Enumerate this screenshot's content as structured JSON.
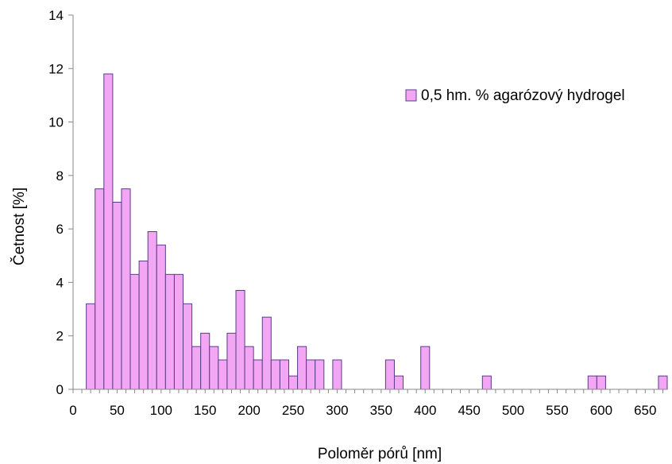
{
  "chart_data": {
    "type": "bar",
    "xlabel": "Poloměr pórů [nm]",
    "ylabel": "Četnost [%]",
    "xlim": [
      0,
      675
    ],
    "ylim": [
      0,
      14
    ],
    "bin_width": 10,
    "x_ticks": [
      0,
      50,
      100,
      150,
      200,
      250,
      300,
      350,
      400,
      450,
      500,
      550,
      600,
      650
    ],
    "x_tick_labels": [
      "0",
      "50",
      "100",
      "150",
      "200",
      "250",
      "300",
      "350",
      "400",
      "450",
      "500",
      "550",
      "600",
      "650"
    ],
    "y_ticks": [
      0,
      2,
      4,
      6,
      8,
      10,
      12,
      14
    ],
    "y_tick_labels": [
      "0",
      "2",
      "4",
      "6",
      "8",
      "10",
      "12",
      "14"
    ],
    "legend": {
      "position": "top-right",
      "entries": [
        "0,5 hm. % agarózový hydrogel"
      ]
    },
    "colors": {
      "bar_fill": "#f2a6f4",
      "bar_stroke": "#5a3d8a",
      "axis": "#888888"
    },
    "grid": false,
    "series": [
      {
        "name": "0,5 hm. % agarózový hydrogel",
        "bins": [
          {
            "x": 20,
            "value": 3.2
          },
          {
            "x": 30,
            "value": 7.5
          },
          {
            "x": 40,
            "value": 11.8
          },
          {
            "x": 50,
            "value": 7.0
          },
          {
            "x": 60,
            "value": 7.5
          },
          {
            "x": 70,
            "value": 4.3
          },
          {
            "x": 80,
            "value": 4.8
          },
          {
            "x": 90,
            "value": 5.9
          },
          {
            "x": 100,
            "value": 5.4
          },
          {
            "x": 110,
            "value": 4.3
          },
          {
            "x": 120,
            "value": 4.3
          },
          {
            "x": 130,
            "value": 3.2
          },
          {
            "x": 140,
            "value": 1.6
          },
          {
            "x": 150,
            "value": 2.1
          },
          {
            "x": 160,
            "value": 1.6
          },
          {
            "x": 170,
            "value": 1.1
          },
          {
            "x": 180,
            "value": 2.1
          },
          {
            "x": 190,
            "value": 3.7
          },
          {
            "x": 200,
            "value": 1.6
          },
          {
            "x": 210,
            "value": 1.1
          },
          {
            "x": 220,
            "value": 2.7
          },
          {
            "x": 230,
            "value": 1.1
          },
          {
            "x": 240,
            "value": 1.1
          },
          {
            "x": 250,
            "value": 0.5
          },
          {
            "x": 260,
            "value": 1.6
          },
          {
            "x": 270,
            "value": 1.1
          },
          {
            "x": 280,
            "value": 1.1
          },
          {
            "x": 300,
            "value": 1.1
          },
          {
            "x": 360,
            "value": 1.1
          },
          {
            "x": 370,
            "value": 0.5
          },
          {
            "x": 400,
            "value": 1.6
          },
          {
            "x": 470,
            "value": 0.5
          },
          {
            "x": 590,
            "value": 0.5
          },
          {
            "x": 600,
            "value": 0.5
          },
          {
            "x": 670,
            "value": 0.5
          }
        ]
      }
    ]
  }
}
